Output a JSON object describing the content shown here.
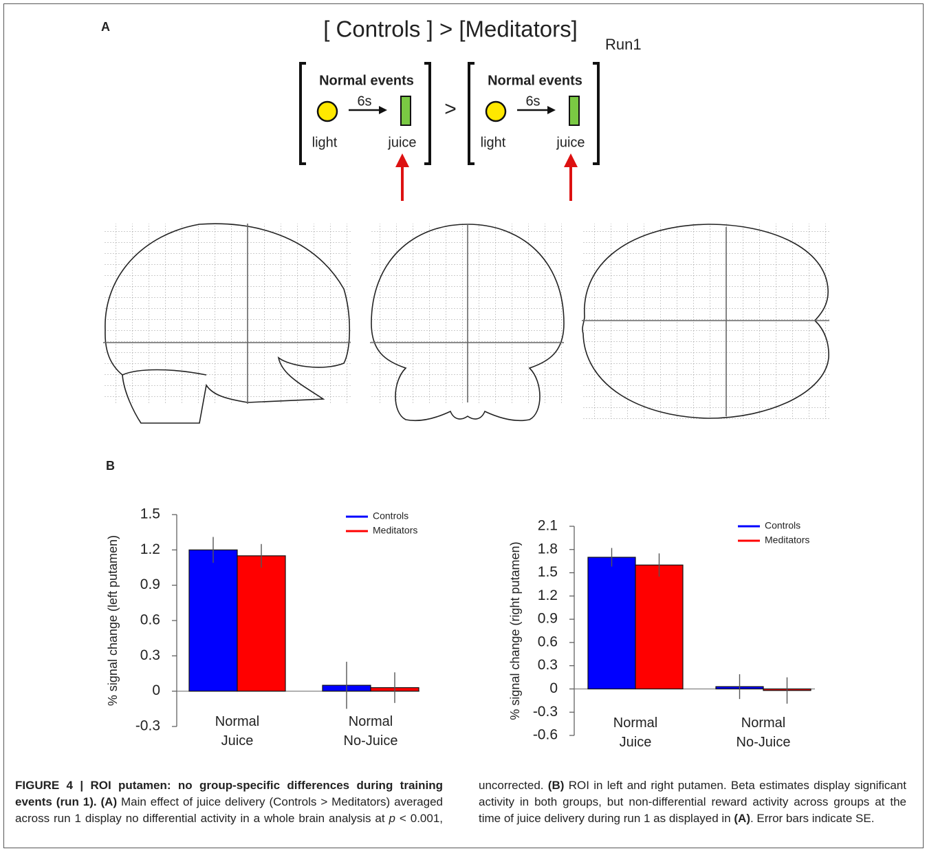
{
  "panel_a": {
    "label": "A",
    "title": "[ Controls   ] > [Meditators]",
    "subscript": "Run1",
    "comparator": ">",
    "boxes": [
      {
        "heading": "Normal events",
        "delay": "6s",
        "cue": "light",
        "reward": "juice"
      },
      {
        "heading": "Normal events",
        "delay": "6s",
        "cue": "light",
        "reward": "juice"
      }
    ]
  },
  "panel_b": {
    "label": "B"
  },
  "chart_data": [
    {
      "type": "bar",
      "ylabel": "% signal change (left putamen)",
      "categories": [
        "Normal Juice",
        "Normal No-Juice"
      ],
      "series": [
        {
          "name": "Controls",
          "color": "#0000ff",
          "values": [
            1.2,
            0.05
          ],
          "errors": [
            0.11,
            0.2
          ]
        },
        {
          "name": "Meditators",
          "color": "#ff0000",
          "values": [
            1.15,
            0.03
          ],
          "errors": [
            0.1,
            0.13
          ]
        }
      ],
      "ylim": [
        -0.3,
        1.5
      ],
      "yticks": [
        -0.3,
        0,
        0.3,
        0.6,
        0.9,
        1.2,
        1.5
      ],
      "legend": "upper right"
    },
    {
      "type": "bar",
      "ylabel": "% signal change (right putamen)",
      "categories": [
        "Normal Juice",
        "Normal No-Juice"
      ],
      "series": [
        {
          "name": "Controls",
          "color": "#0000ff",
          "values": [
            1.7,
            0.03
          ],
          "errors": [
            0.12,
            0.16
          ]
        },
        {
          "name": "Meditators",
          "color": "#ff0000",
          "values": [
            1.6,
            -0.02
          ],
          "errors": [
            0.15,
            0.17
          ]
        }
      ],
      "ylim": [
        -0.6,
        2.1
      ],
      "yticks": [
        -0.6,
        -0.3,
        0,
        0.3,
        0.6,
        0.9,
        1.2,
        1.5,
        1.8,
        2.1
      ],
      "legend": "upper right"
    }
  ],
  "caption": [
    {
      "text": "FIGURE 4 | ROI putamen: no group-specific differences during training events (run 1).",
      "bold": true
    },
    {
      "text": " (A)",
      "bold": true
    },
    {
      "text": " Main effect of juice delivery (Controls > Meditators) averaged across run 1 display no differential activity in a whole brain analysis at "
    },
    {
      "text": "p",
      "italic": true
    },
    {
      "text": " < 0.001, uncorrected. "
    },
    {
      "text": "(B)",
      "bold": true
    },
    {
      "text": " ROI in left and right putamen. Beta estimates display significant activity in both groups, but non-differential reward activity across groups at the time of juice delivery during run 1 as displayed in "
    },
    {
      "text": "(A)",
      "bold": true
    },
    {
      "text": ". Error bars indicate SE."
    }
  ]
}
